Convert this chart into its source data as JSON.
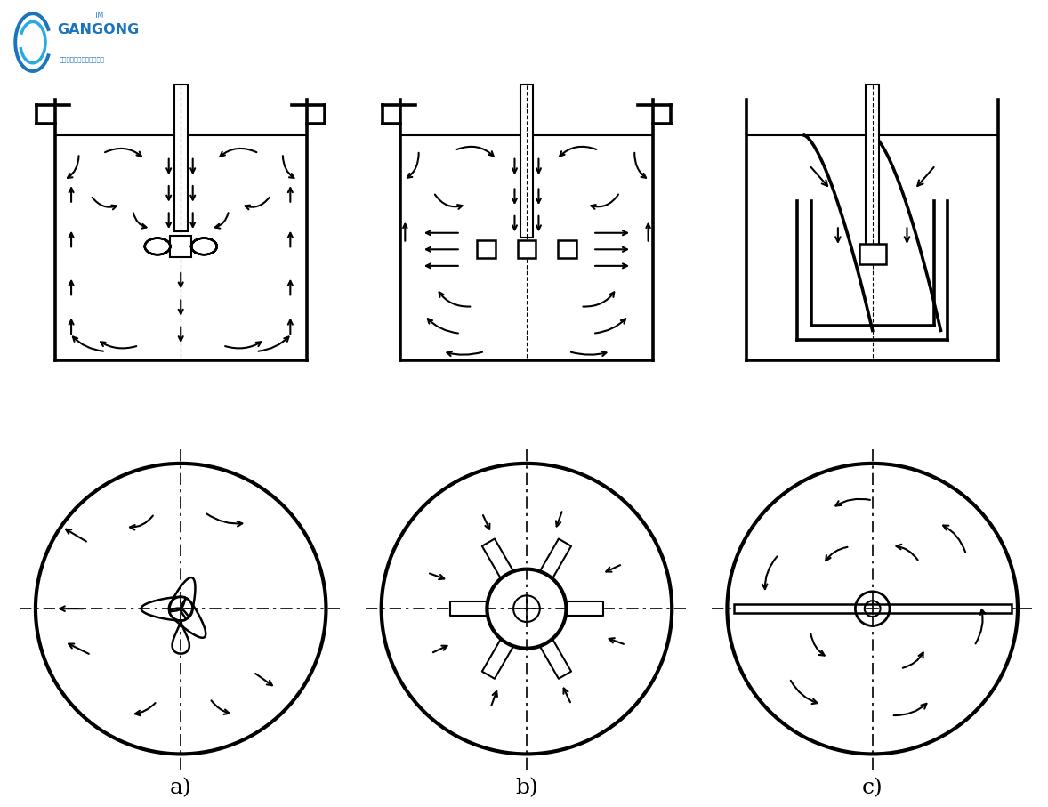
{
  "bg_color": "#ffffff",
  "line_color": "#000000",
  "label_a": "a)",
  "label_b": "b)",
  "label_c": "c)",
  "fig_width": 11.78,
  "fig_height": 9.07
}
